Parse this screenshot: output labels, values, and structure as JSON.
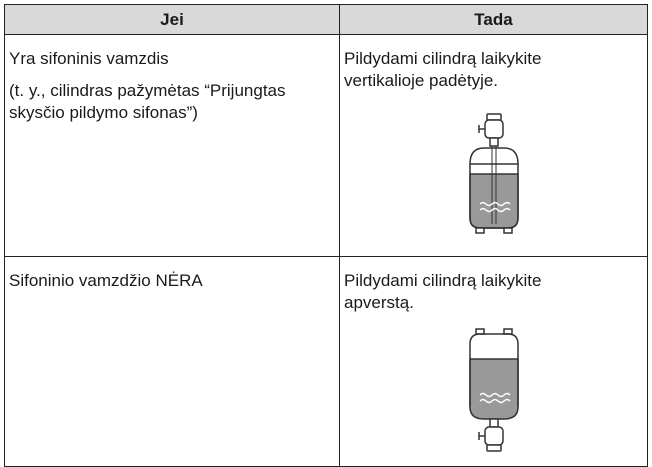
{
  "table": {
    "header": [
      "Jei",
      "Tada"
    ],
    "rows": [
      [
        [
          "Yra sifoninis vamzdis",
          "(t. y., cilindras pažymėtas “Prijungtas skysčio pildymo sifonas”)"
        ],
        [
          "Pildydami cilindrą laikykite vertikalioje padėtyje."
        ]
      ],
      [
        [
          "Sifoninio vamzdžio NĖRA"
        ],
        [
          "Pildydami cilindrą laikykite apverstą."
        ]
      ]
    ]
  }
}
